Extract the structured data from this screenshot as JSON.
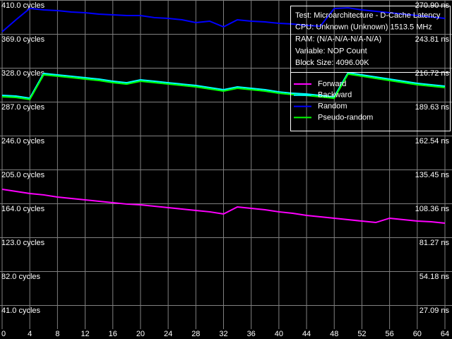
{
  "chart_data": {
    "type": "line",
    "info": [
      "Test: Microarchitecture - D-Cache Latency",
      "CPU: Unknown (Unknown) 1513.5 MHz",
      "RAM: (N/A-N/A-N/A-N/A)",
      "Variable: NOP Count",
      "Block Size: 4096.00K"
    ],
    "x": [
      0,
      2,
      4,
      6,
      8,
      10,
      12,
      14,
      16,
      18,
      20,
      22,
      24,
      26,
      28,
      30,
      32,
      34,
      36,
      38,
      40,
      42,
      44,
      46,
      48,
      50,
      52,
      54,
      56,
      58,
      60,
      62,
      64
    ],
    "series": [
      {
        "name": "Forward",
        "color": "#ff00ff",
        "values": [
          181.1,
          178.5,
          176.0,
          174.3,
          171.7,
          170.0,
          168.3,
          166.6,
          164.9,
          163.2,
          162.3,
          160.6,
          158.9,
          157.2,
          155.5,
          153.8,
          151.2,
          159.7,
          158.0,
          156.3,
          153.8,
          152.0,
          149.5,
          147.8,
          146.1,
          144.4,
          142.6,
          140.9,
          146.1,
          144.4,
          142.6,
          141.8,
          140.1
        ]
      },
      {
        "name": "Backward",
        "color": "#00ffff",
        "values": [
          294.7,
          293.8,
          291.3,
          321.2,
          319.5,
          317.8,
          316.0,
          314.3,
          311.8,
          310.0,
          313.5,
          311.8,
          310.0,
          308.3,
          306.6,
          304.1,
          301.5,
          304.9,
          303.2,
          301.5,
          298.9,
          297.2,
          296.3,
          294.6,
          292.9,
          322.1,
          319.5,
          316.9,
          314.3,
          311.8,
          309.2,
          307.5,
          305.8
        ]
      },
      {
        "name": "Random",
        "color": "#0000ff",
        "values": [
          371.6,
          386.1,
          399.8,
          398.0,
          397.2,
          395.5,
          394.6,
          392.9,
          392.1,
          391.2,
          391.2,
          388.7,
          387.8,
          386.1,
          382.7,
          384.4,
          377.5,
          386.1,
          384.4,
          383.5,
          381.8,
          381.0,
          379.3,
          378.4,
          399.8,
          400.6,
          398.0,
          396.3,
          394.6,
          392.9,
          391.2,
          389.5,
          387.8
        ]
      },
      {
        "name": "Pseudo-random",
        "color": "#00ff00",
        "values": [
          293.0,
          292.1,
          289.6,
          319.5,
          317.8,
          316.1,
          314.3,
          312.6,
          310.1,
          308.3,
          311.8,
          310.1,
          308.3,
          306.6,
          304.9,
          302.4,
          299.8,
          303.2,
          301.5,
          299.8,
          297.2,
          295.5,
          294.6,
          292.9,
          291.2,
          320.4,
          317.8,
          315.2,
          312.6,
          310.1,
          307.5,
          305.8,
          304.1
        ]
      }
    ],
    "xlim": [
      0,
      64
    ],
    "xticks": [
      0,
      4,
      8,
      12,
      16,
      20,
      24,
      28,
      32,
      36,
      40,
      44,
      48,
      52,
      56,
      60,
      64
    ],
    "ylim": [
      0,
      410
    ],
    "yticks": [
      {
        "value": 41,
        "label": "41.0 cycles"
      },
      {
        "value": 82,
        "label": "82.0 cycles"
      },
      {
        "value": 123,
        "label": "123.0 cycles"
      },
      {
        "value": 164,
        "label": "164.0 cycles"
      },
      {
        "value": 205,
        "label": "205.0 cycles"
      },
      {
        "value": 246,
        "label": "246.0 cycles"
      },
      {
        "value": 287,
        "label": "287.0 cycles"
      },
      {
        "value": 328,
        "label": "328.0 cycles"
      },
      {
        "value": 369,
        "label": "369.0 cycles"
      },
      {
        "value": 410,
        "label": "410.0 cycles"
      }
    ],
    "y2lim": [
      0,
      270.9
    ],
    "y2ticks": [
      {
        "value": 27.09,
        "label": "27.09 ns"
      },
      {
        "value": 54.18,
        "label": "54.18 ns"
      },
      {
        "value": 81.27,
        "label": "81.27 ns"
      },
      {
        "value": 108.36,
        "label": "108.36 ns"
      },
      {
        "value": 135.45,
        "label": "135.45 ns"
      },
      {
        "value": 162.54,
        "label": "162.54 ns"
      },
      {
        "value": 189.63,
        "label": "189.63 ns"
      },
      {
        "value": 216.72,
        "label": "216.72 ns"
      },
      {
        "value": 243.81,
        "label": "243.81 ns"
      },
      {
        "value": 270.9,
        "label": "270.90 ns"
      }
    ],
    "grid": true
  }
}
